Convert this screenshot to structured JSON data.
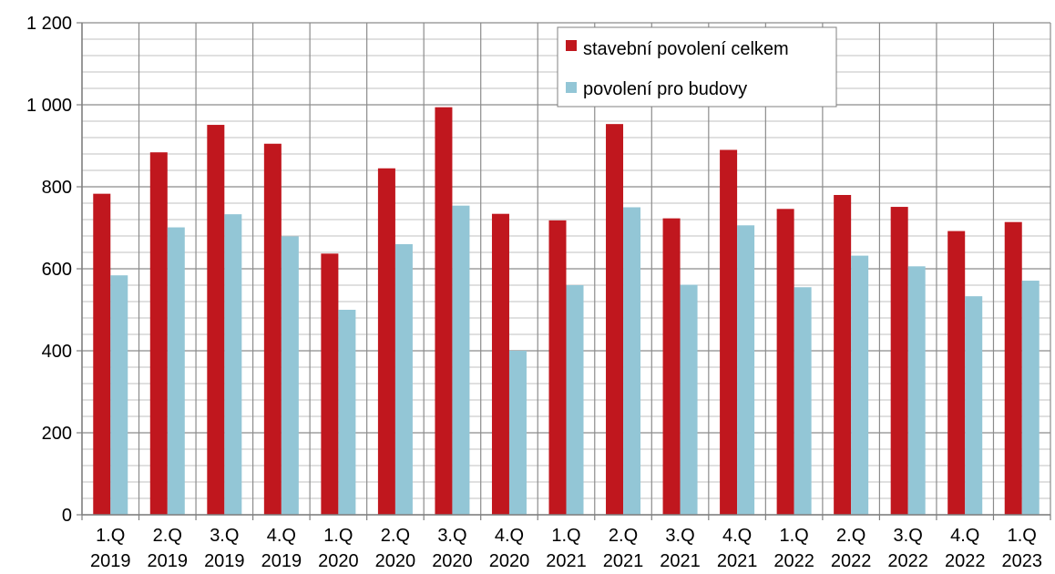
{
  "chart_data": {
    "type": "bar",
    "categories": [
      [
        "1.Q",
        "2019"
      ],
      [
        "2.Q",
        "2019"
      ],
      [
        "3.Q",
        "2019"
      ],
      [
        "4.Q",
        "2019"
      ],
      [
        "1.Q",
        "2020"
      ],
      [
        "2.Q",
        "2020"
      ],
      [
        "3.Q",
        "2020"
      ],
      [
        "4.Q",
        "2020"
      ],
      [
        "1.Q",
        "2021"
      ],
      [
        "2.Q",
        "2021"
      ],
      [
        "3.Q",
        "2021"
      ],
      [
        "4.Q",
        "2021"
      ],
      [
        "1.Q",
        "2022"
      ],
      [
        "2.Q",
        "2022"
      ],
      [
        "3.Q",
        "2022"
      ],
      [
        "4.Q",
        "2022"
      ],
      [
        "1.Q",
        "2023"
      ]
    ],
    "series": [
      {
        "name": "stavební povolení celkem",
        "color": "#C0171E",
        "values": [
          783,
          884,
          951,
          905,
          637,
          845,
          994,
          734,
          718,
          953,
          723,
          890,
          746,
          780,
          751,
          692,
          714
        ]
      },
      {
        "name": "povolení pro budovy",
        "color": "#93C6D6",
        "values": [
          584,
          701,
          733,
          679,
          500,
          660,
          754,
          400,
          560,
          750,
          561,
          706,
          555,
          632,
          606,
          533,
          571
        ]
      }
    ],
    "y_ticks": [
      {
        "value": 0,
        "label": "0"
      },
      {
        "value": 200,
        "label": "200"
      },
      {
        "value": 400,
        "label": "400"
      },
      {
        "value": 600,
        "label": "600"
      },
      {
        "value": 800,
        "label": "800"
      },
      {
        "value": 1000,
        "label": "1 000"
      },
      {
        "value": 1200,
        "label": "1 200"
      }
    ],
    "ylim": [
      0,
      1200
    ],
    "minor_grid_step": 40,
    "grid": true,
    "vertical_grid": true,
    "legend_position": "top-right",
    "title": "",
    "xlabel": "",
    "ylabel": ""
  }
}
